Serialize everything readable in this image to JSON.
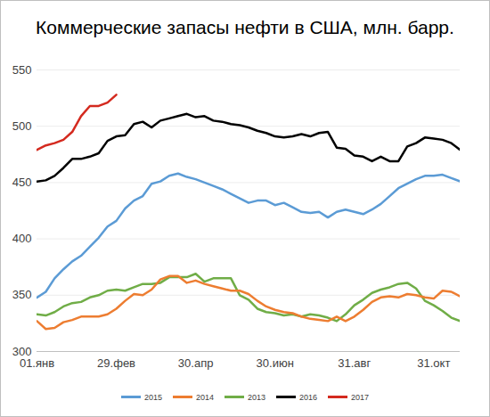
{
  "chart_data": {
    "type": "line",
    "title": "Коммерческие запасы нефти в США, млн. барр.",
    "categories": [
      "01.янв",
      null,
      null,
      null,
      null,
      null,
      null,
      null,
      null,
      "29.фев",
      null,
      null,
      null,
      null,
      null,
      null,
      null,
      null,
      "30.апр",
      null,
      null,
      null,
      null,
      null,
      null,
      null,
      null,
      "30.июн",
      null,
      null,
      null,
      null,
      null,
      null,
      null,
      null,
      "31.авг",
      null,
      null,
      null,
      null,
      null,
      null,
      null,
      null,
      "31.окт",
      null,
      null,
      null
    ],
    "series": [
      {
        "name": "2015",
        "color": "#5b9bd5",
        "values": [
          348,
          353,
          365,
          373,
          380,
          385,
          393,
          401,
          411,
          416,
          427,
          434,
          438,
          449,
          451,
          456,
          458,
          455,
          453,
          450,
          447,
          444,
          440,
          436,
          432,
          434,
          434,
          430,
          432,
          428,
          424,
          423,
          424,
          419,
          424,
          426,
          424,
          422,
          426,
          431,
          438,
          445,
          449,
          453,
          456,
          456,
          457,
          454,
          451
        ]
      },
      {
        "name": "2014",
        "color": "#ed7d31",
        "values": [
          327,
          320,
          321,
          326,
          328,
          331,
          331,
          331,
          333,
          338,
          345,
          351,
          350,
          355,
          364,
          367,
          367,
          361,
          363,
          360,
          358,
          356,
          354,
          354,
          351,
          345,
          340,
          337,
          335,
          334,
          331,
          329,
          328,
          327,
          331,
          327,
          331,
          337,
          344,
          348,
          349,
          348,
          351,
          350,
          348,
          347,
          354,
          353,
          349
        ]
      },
      {
        "name": "2013",
        "color": "#70ad47",
        "values": [
          333,
          332,
          335,
          340,
          343,
          344,
          348,
          350,
          354,
          355,
          354,
          357,
          360,
          360,
          361,
          366,
          366,
          366,
          369,
          362,
          365,
          365,
          365,
          350,
          346,
          338,
          335,
          334,
          332,
          333,
          331,
          333,
          332,
          330,
          327,
          333,
          341,
          346,
          352,
          355,
          357,
          360,
          361,
          356,
          345,
          341,
          336,
          330,
          327
        ]
      },
      {
        "name": "2016",
        "color": "#000000",
        "values": [
          451,
          452,
          456,
          463,
          471,
          471,
          473,
          476,
          487,
          491,
          492,
          502,
          504,
          499,
          505,
          507,
          509,
          511,
          508,
          509,
          505,
          504,
          502,
          501,
          499,
          496,
          494,
          491,
          490,
          491,
          493,
          491,
          494,
          495,
          481,
          480,
          474,
          473,
          469,
          473,
          469,
          469,
          482,
          485,
          490,
          489,
          488,
          485,
          479
        ]
      },
      {
        "name": "2017",
        "color": "#d42a1f",
        "values": [
          479,
          483,
          485,
          488,
          495,
          509,
          518,
          518,
          521,
          528,
          null,
          null,
          null,
          null,
          null,
          null,
          null,
          null,
          null,
          null,
          null,
          null,
          null,
          null,
          null,
          null,
          null,
          null,
          null,
          null,
          null,
          null,
          null,
          null,
          null,
          null,
          null,
          null,
          null,
          null,
          null,
          null,
          null,
          null,
          null,
          null,
          null,
          null,
          null
        ]
      }
    ],
    "ylim": [
      300,
      550
    ],
    "yticks": [
      300,
      350,
      400,
      450,
      500,
      550
    ],
    "grid": true,
    "legend": "bottom"
  }
}
